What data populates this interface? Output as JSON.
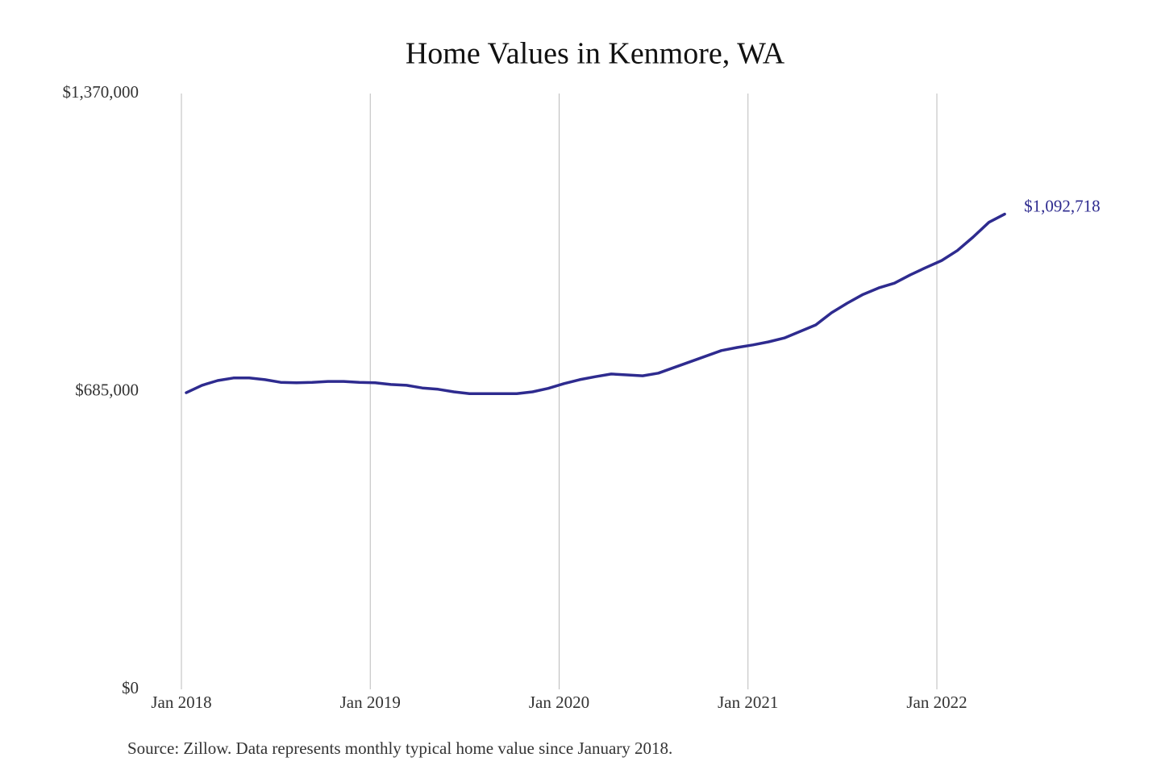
{
  "chart_data": {
    "type": "line",
    "title": "Home Values in Kenmore, WA",
    "source": "Source: Zillow. Data represents monthly typical home value since January 2018.",
    "x": [
      "2018-01",
      "2018-02",
      "2018-03",
      "2018-04",
      "2018-05",
      "2018-06",
      "2018-07",
      "2018-08",
      "2018-09",
      "2018-10",
      "2018-11",
      "2018-12",
      "2019-01",
      "2019-02",
      "2019-03",
      "2019-04",
      "2019-05",
      "2019-06",
      "2019-07",
      "2019-08",
      "2019-09",
      "2019-10",
      "2019-11",
      "2019-12",
      "2020-01",
      "2020-02",
      "2020-03",
      "2020-04",
      "2020-05",
      "2020-06",
      "2020-07",
      "2020-08",
      "2020-09",
      "2020-10",
      "2020-11",
      "2020-12",
      "2021-01",
      "2021-02",
      "2021-03",
      "2021-04",
      "2021-05",
      "2021-06",
      "2021-07",
      "2021-08",
      "2021-09",
      "2021-10",
      "2021-11",
      "2021-12",
      "2022-01",
      "2022-02",
      "2022-03",
      "2022-04",
      "2022-05"
    ],
    "values": [
      682000,
      699000,
      710000,
      716000,
      716000,
      712000,
      706000,
      705000,
      706000,
      708000,
      708000,
      706000,
      705000,
      701000,
      699000,
      693000,
      690000,
      684000,
      680000,
      680000,
      680000,
      680000,
      684000,
      692000,
      703000,
      712000,
      719000,
      725000,
      723000,
      721000,
      727000,
      740000,
      753000,
      766000,
      779000,
      786000,
      792000,
      799000,
      808000,
      823000,
      838000,
      866000,
      888000,
      908000,
      923000,
      934000,
      953000,
      970000,
      986000,
      1009000,
      1040000,
      1074000,
      1092718
    ],
    "value_labels": [
      null,
      null,
      null,
      null,
      null,
      null,
      null,
      null,
      null,
      null,
      null,
      null,
      null,
      null,
      null,
      null,
      null,
      null,
      null,
      null,
      null,
      null,
      null,
      null,
      null,
      null,
      null,
      null,
      null,
      null,
      null,
      null,
      null,
      null,
      null,
      null,
      null,
      null,
      null,
      null,
      null,
      null,
      null,
      null,
      null,
      null,
      null,
      null,
      null,
      null,
      null,
      null,
      "$1,092,718"
    ],
    "color": "#2e2b8f",
    "ylim": [
      0,
      1370000
    ],
    "yticks": [
      {
        "value": 0,
        "label": "$0"
      },
      {
        "value": 685000,
        "label": "$685,000"
      },
      {
        "value": 1370000,
        "label": "$1,370,000"
      }
    ],
    "xticks": [
      {
        "value": "2018-01",
        "label": "Jan 2018"
      },
      {
        "value": "2019-01",
        "label": "Jan 2019"
      },
      {
        "value": "2020-01",
        "label": "Jan 2020"
      },
      {
        "value": "2021-01",
        "label": "Jan 2021"
      },
      {
        "value": "2022-01",
        "label": "Jan 2022"
      }
    ],
    "grid": "x"
  }
}
